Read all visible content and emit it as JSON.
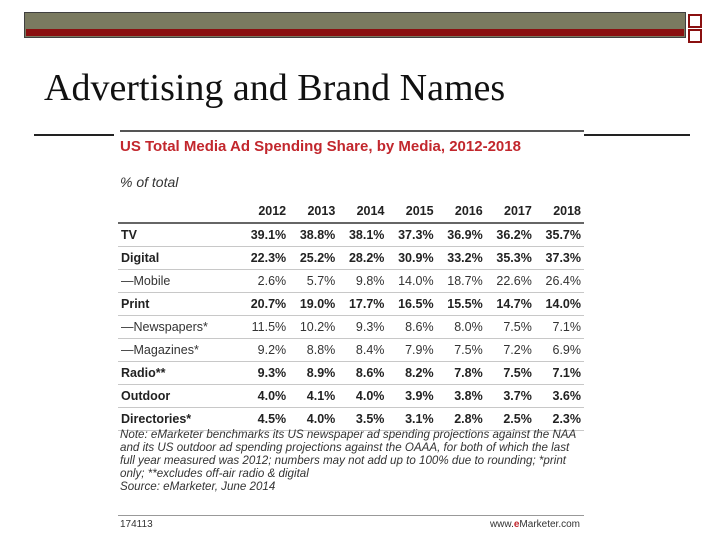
{
  "slide": {
    "title": "Advertising and Brand Names"
  },
  "figure": {
    "title": "US Total Media Ad Spending Share, by Media, 2012-2018",
    "subtitle": "% of total",
    "columns": [
      "",
      "2012",
      "2013",
      "2014",
      "2015",
      "2016",
      "2017",
      "2018"
    ],
    "rows": [
      {
        "label": "TV",
        "style": "bold",
        "values": [
          "39.1%",
          "38.8%",
          "38.1%",
          "37.3%",
          "36.9%",
          "36.2%",
          "35.7%"
        ]
      },
      {
        "label": "Digital",
        "style": "bold",
        "values": [
          "22.3%",
          "25.2%",
          "28.2%",
          "30.9%",
          "33.2%",
          "35.3%",
          "37.3%"
        ]
      },
      {
        "label": "—Mobile",
        "style": "sub",
        "values": [
          "2.6%",
          "5.7%",
          "9.8%",
          "14.0%",
          "18.7%",
          "22.6%",
          "26.4%"
        ]
      },
      {
        "label": "Print",
        "style": "bold",
        "values": [
          "20.7%",
          "19.0%",
          "17.7%",
          "16.5%",
          "15.5%",
          "14.7%",
          "14.0%"
        ]
      },
      {
        "label": "—Newspapers*",
        "style": "sub",
        "values": [
          "11.5%",
          "10.2%",
          "9.3%",
          "8.6%",
          "8.0%",
          "7.5%",
          "7.1%"
        ]
      },
      {
        "label": "—Magazines*",
        "style": "sub",
        "values": [
          "9.2%",
          "8.8%",
          "8.4%",
          "7.9%",
          "7.5%",
          "7.2%",
          "6.9%"
        ]
      },
      {
        "label": "Radio**",
        "style": "bold",
        "values": [
          "9.3%",
          "8.9%",
          "8.6%",
          "8.2%",
          "7.8%",
          "7.5%",
          "7.1%"
        ]
      },
      {
        "label": "Outdoor",
        "style": "bold",
        "values": [
          "4.0%",
          "4.1%",
          "4.0%",
          "3.9%",
          "3.8%",
          "3.7%",
          "3.6%"
        ]
      },
      {
        "label": "Directories*",
        "style": "bold",
        "values": [
          "4.5%",
          "4.0%",
          "3.5%",
          "3.1%",
          "2.8%",
          "2.5%",
          "2.3%"
        ]
      }
    ],
    "note": "Note: eMarketer benchmarks its US newspaper ad spending projections against the NAA and its US outdoor ad spending projections against the OAAA, for both of which the last full year measured was 2012; numbers may not add up to 100% due to rounding; *print only; **excludes off-air radio & digital",
    "source": "Source: eMarketer, June 2014",
    "id": "174113",
    "brand_prefix": "www.",
    "brand_e": "e",
    "brand_suffix": "Marketer.com"
  },
  "colors": {
    "accent_red": "#c2272d",
    "bar_olive": "#7a7a60",
    "bar_red": "#8a1010"
  }
}
